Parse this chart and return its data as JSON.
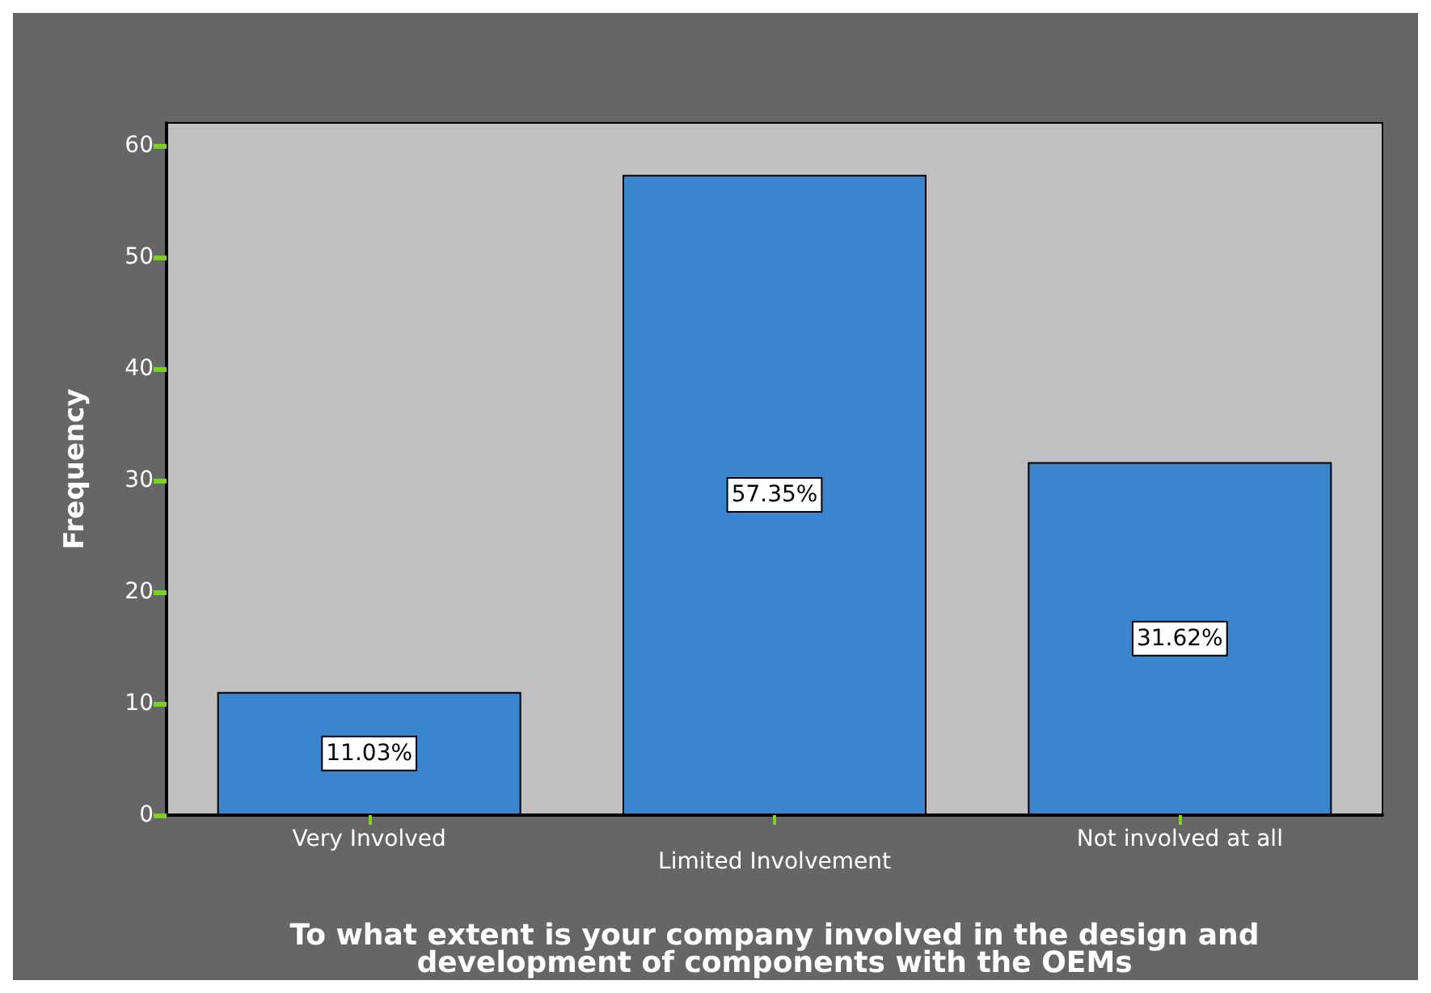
{
  "chart_data": {
    "type": "bar",
    "xlabel": "To what extent is your company involved in the design and development of components with the OEMs",
    "ylabel": "Frequency",
    "categories": [
      "Very Involved",
      "Limited Involvement",
      "Not involved at all"
    ],
    "values": [
      11.03,
      57.35,
      31.62
    ],
    "value_labels": [
      "11.03%",
      "57.35%",
      "31.62%"
    ],
    "color": "#3a84d0",
    "ylim": [
      0,
      62
    ],
    "yticks": [
      0,
      10,
      20,
      30,
      40,
      50,
      60
    ],
    "grid": false
  }
}
